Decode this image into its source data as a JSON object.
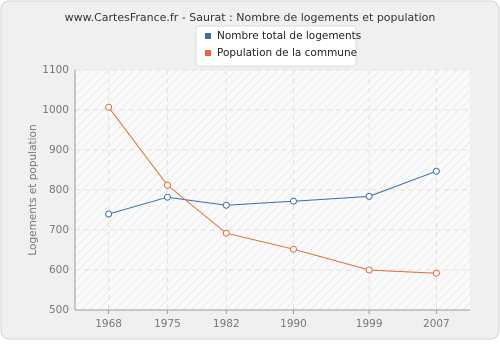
{
  "chart_data": {
    "type": "line",
    "title": "www.CartesFrance.fr - Saurat : Nombre de logements et population",
    "y_label": "Logements et population",
    "x": [
      1968,
      1975,
      1982,
      1990,
      1999,
      2007
    ],
    "series": [
      {
        "name": "Nombre total de logements",
        "color": "#3a6ea5",
        "values": [
          740,
          782,
          762,
          772,
          784,
          847
        ]
      },
      {
        "name": "Population de la commune",
        "color": "#e06b3a",
        "values": [
          1007,
          812,
          692,
          652,
          600,
          592
        ]
      }
    ],
    "xlim": [
      1964,
      2011
    ],
    "xticks": [
      1968,
      1975,
      1982,
      1990,
      1999,
      2007
    ],
    "ylim": [
      500,
      1100
    ],
    "yticks": [
      500,
      600,
      700,
      800,
      900,
      1000,
      1100
    ],
    "grid": true,
    "legend": "top"
  }
}
